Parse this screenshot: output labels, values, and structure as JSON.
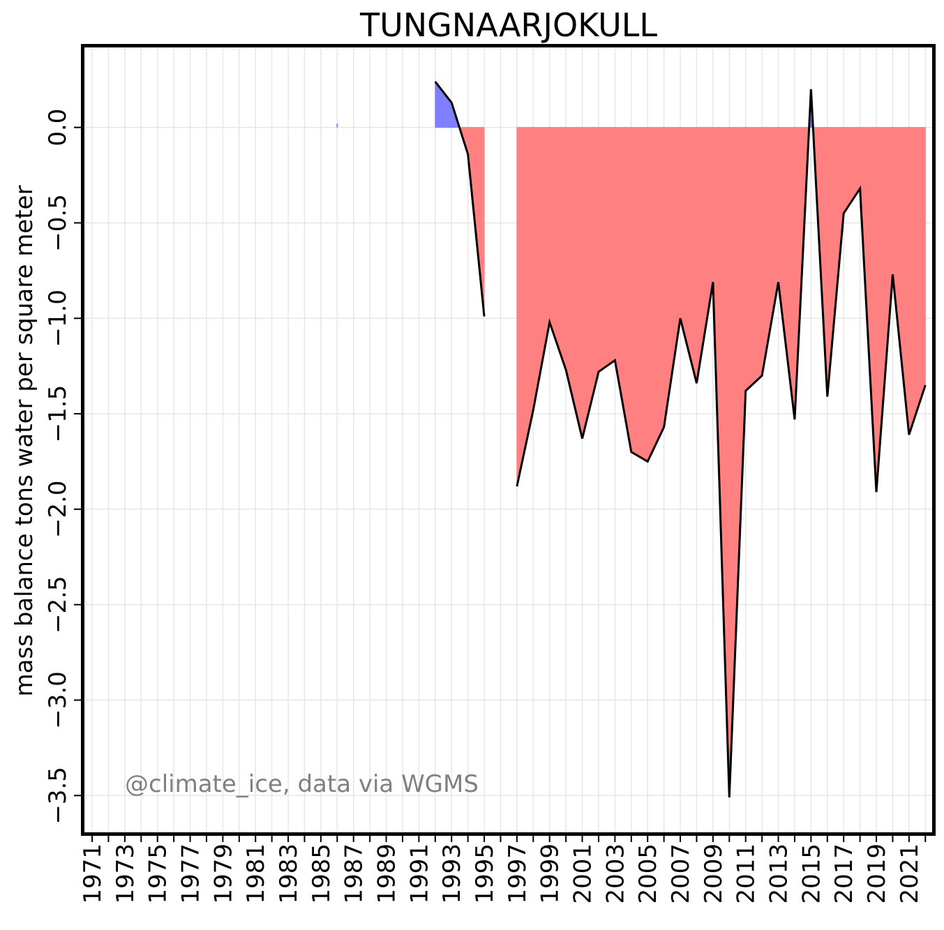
{
  "chart_data": {
    "type": "area",
    "title": "TUNGNAARJOKULL",
    "ylabel": "mass balance tons water per square meter",
    "xlabel": "",
    "annotation": "@climate_ice, data via WGMS",
    "xlim": [
      1970.4,
      2022.5
    ],
    "ylim": [
      -3.7,
      0.43
    ],
    "grid": true,
    "colors": {
      "positive": "#8080ff",
      "negative": "#ff8080",
      "line": "#000000",
      "grid": "#e6e6e6"
    },
    "x_ticks": [
      1971,
      1973,
      1975,
      1977,
      1979,
      1981,
      1983,
      1985,
      1987,
      1989,
      1991,
      1993,
      1995,
      1997,
      1999,
      2001,
      2003,
      2005,
      2007,
      2009,
      2011,
      2013,
      2015,
      2017,
      2019,
      2021
    ],
    "x_tick_labels": [
      "1971",
      "1973",
      "1975",
      "1977",
      "1979",
      "1981",
      "1983",
      "1985",
      "1987",
      "1989",
      "1991",
      "1993",
      "1995",
      "1997",
      "1999",
      "2001",
      "2003",
      "2005",
      "2007",
      "2009",
      "2011",
      "2013",
      "2015",
      "2017",
      "2019",
      "2021"
    ],
    "y_ticks": [
      0.0,
      -0.5,
      -1.0,
      -1.5,
      -2.0,
      -2.5,
      -3.0,
      -3.5
    ],
    "y_tick_labels": [
      "0.0",
      "−0.5",
      "−1.0",
      "−1.5",
      "−2.0",
      "−2.5",
      "−3.0",
      "−3.5"
    ],
    "isolated_points": [
      {
        "x": 1986,
        "y": 0.02
      }
    ],
    "series": [
      {
        "x": [
          1992,
          1993,
          1994,
          1995
        ],
        "y": [
          0.24,
          0.13,
          -0.14,
          -0.99
        ]
      },
      {
        "x": [
          1997,
          1998,
          1999,
          2000,
          2001,
          2002,
          2003,
          2004,
          2005,
          2006,
          2007,
          2008,
          2009,
          2010,
          2011,
          2012,
          2013,
          2014,
          2015,
          2016,
          2017,
          2018,
          2019,
          2020,
          2021,
          2022
        ],
        "y": [
          -1.88,
          -1.48,
          -1.02,
          -1.27,
          -1.63,
          -1.28,
          -1.22,
          -1.7,
          -1.75,
          -1.57,
          -1.0,
          -1.34,
          -0.81,
          -3.51,
          -1.38,
          -1.3,
          -0.81,
          -1.53,
          0.2,
          -1.41,
          -0.45,
          -0.32,
          -1.91,
          -0.77,
          -1.61,
          -1.35
        ]
      }
    ]
  }
}
